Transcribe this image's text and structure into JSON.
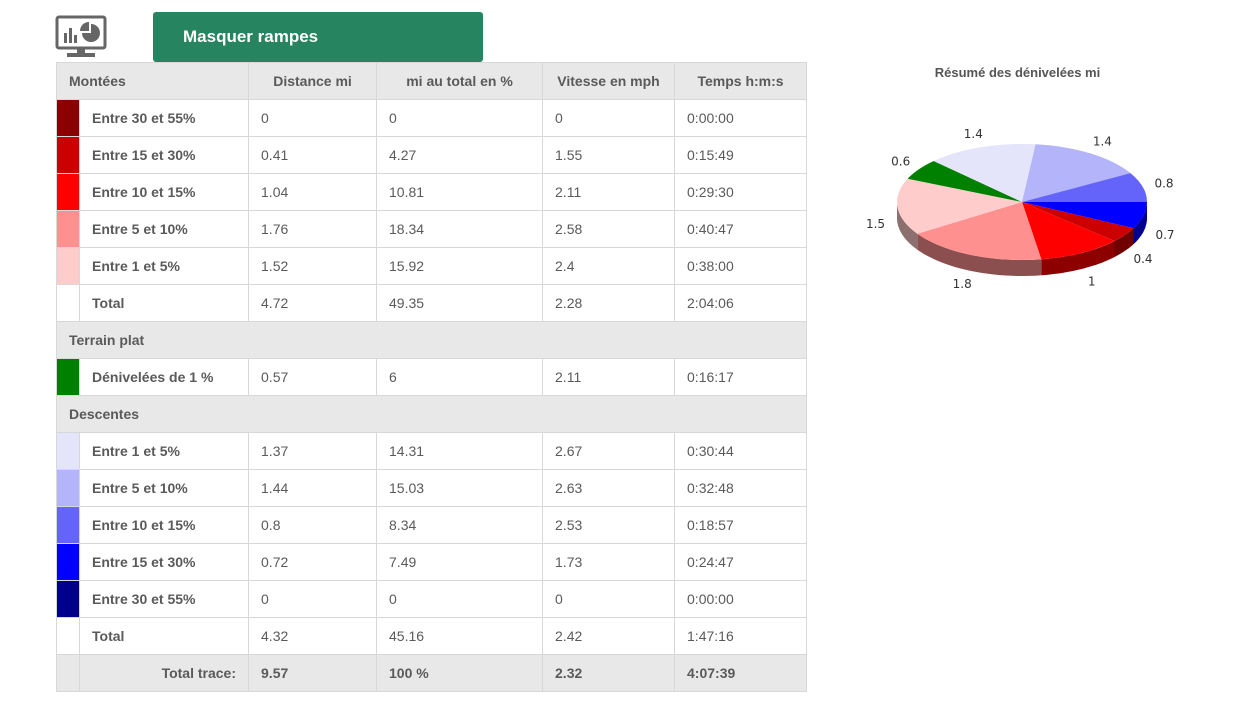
{
  "toolbar": {
    "chart_icon": "monitor-chart-icon",
    "toggle_label": "Masquer rampes"
  },
  "table": {
    "headers": [
      "Montées",
      "Distance mi",
      "mi au total en %",
      "Vitesse en mph",
      "Temps h:m:s"
    ],
    "montees": [
      {
        "color": "#8b0000",
        "label": "Entre 30 et 55%",
        "distance": "0",
        "pct": "0",
        "speed": "0",
        "time": "0:00:00"
      },
      {
        "color": "#cc0000",
        "label": "Entre 15 et 30%",
        "distance": "0.41",
        "pct": "4.27",
        "speed": "1.55",
        "time": "0:15:49"
      },
      {
        "color": "#ff0000",
        "label": "Entre 10 et 15%",
        "distance": "1.04",
        "pct": "10.81",
        "speed": "2.11",
        "time": "0:29:30"
      },
      {
        "color": "#ff9090",
        "label": "Entre 5 et 10%",
        "distance": "1.76",
        "pct": "18.34",
        "speed": "2.58",
        "time": "0:40:47"
      },
      {
        "color": "#ffcccc",
        "label": "Entre 1 et 5%",
        "distance": "1.52",
        "pct": "15.92",
        "speed": "2.4",
        "time": "0:38:00"
      }
    ],
    "montees_total": {
      "label": "Total",
      "distance": "4.72",
      "pct": "49.35",
      "speed": "2.28",
      "time": "2:04:06"
    },
    "plat_header": "Terrain plat",
    "plat": [
      {
        "color": "#008000",
        "label": "Dénivelées de 1 %",
        "distance": "0.57",
        "pct": "6",
        "speed": "2.11",
        "time": "0:16:17"
      }
    ],
    "descentes_header": "Descentes",
    "descentes": [
      {
        "color": "#e4e4fb",
        "label": "Entre 1 et 5%",
        "distance": "1.37",
        "pct": "14.31",
        "speed": "2.67",
        "time": "0:30:44"
      },
      {
        "color": "#b4b4fb",
        "label": "Entre 5 et 10%",
        "distance": "1.44",
        "pct": "15.03",
        "speed": "2.63",
        "time": "0:32:48"
      },
      {
        "color": "#6464fb",
        "label": "Entre 10 et 15%",
        "distance": "0.8",
        "pct": "8.34",
        "speed": "2.53",
        "time": "0:18:57"
      },
      {
        "color": "#0000ff",
        "label": "Entre 15 et 30%",
        "distance": "0.72",
        "pct": "7.49",
        "speed": "1.73",
        "time": "0:24:47"
      },
      {
        "color": "#00008b",
        "label": "Entre 30 et 55%",
        "distance": "0",
        "pct": "0",
        "speed": "0",
        "time": "0:00:00"
      }
    ],
    "descentes_total": {
      "label": "Total",
      "distance": "4.32",
      "pct": "45.16",
      "speed": "2.42",
      "time": "1:47:16"
    },
    "grand_total": {
      "label": "Total trace:",
      "distance": "9.57",
      "pct": "100 %",
      "speed": "2.32",
      "time": "4:07:39"
    }
  },
  "chart_data": {
    "type": "pie",
    "title": "Résumé des dénivelées mi",
    "slices": [
      {
        "label": "0.7",
        "value": 0.72,
        "color": "#0000ff"
      },
      {
        "label": "0.4",
        "value": 0.41,
        "color": "#cc0000"
      },
      {
        "label": "1",
        "value": 1.04,
        "color": "#ff0000"
      },
      {
        "label": "1.8",
        "value": 1.76,
        "color": "#ff9090"
      },
      {
        "label": "1.5",
        "value": 1.52,
        "color": "#ffcccc"
      },
      {
        "label": "0.6",
        "value": 0.57,
        "color": "#008000"
      },
      {
        "label": "1.4",
        "value": 1.37,
        "color": "#e4e4fb"
      },
      {
        "label": "1.4",
        "value": 1.44,
        "color": "#b4b4fb"
      },
      {
        "label": "0.8",
        "value": 0.8,
        "color": "#6464fb"
      }
    ]
  }
}
